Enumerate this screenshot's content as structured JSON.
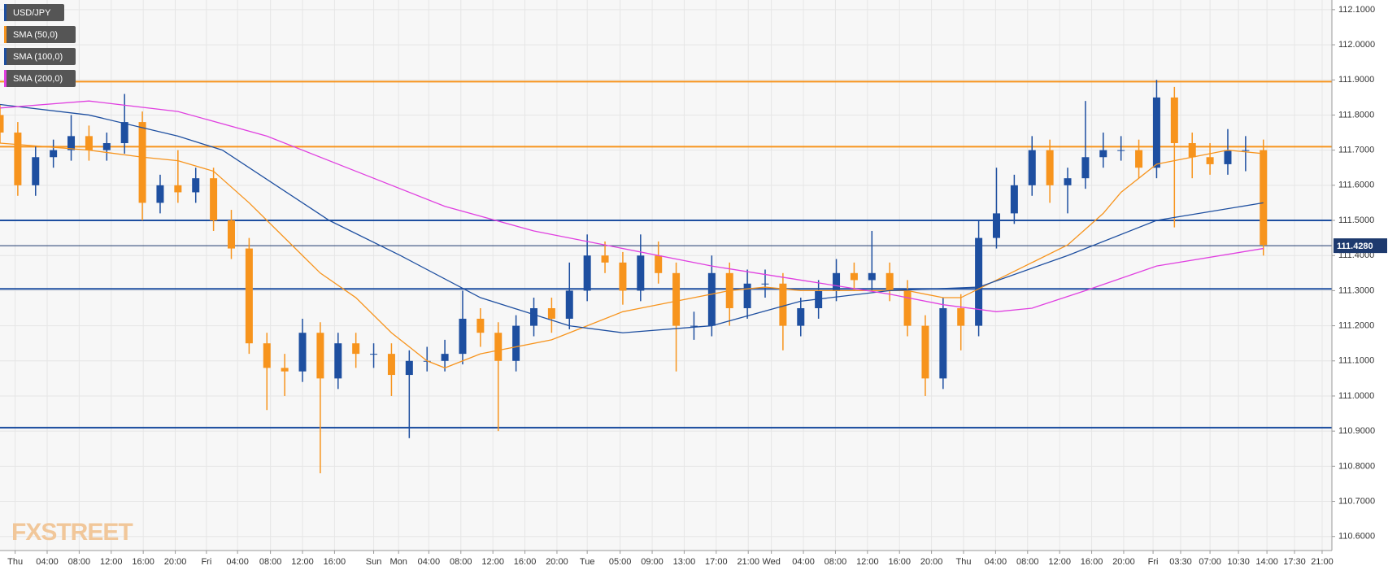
{
  "chart_data": {
    "type": "candlestick",
    "title": "USD/JPY",
    "watermark": "FXSTREET",
    "up_color": "#1e4fa0",
    "down_color": "#f7941d",
    "grid": true,
    "xlim": [
      0,
      74.85
    ],
    "ylim": [
      110.56,
      112.1275
    ],
    "yticks": [
      {
        "value": 110.6,
        "label": "110.6000"
      },
      {
        "value": 110.7,
        "label": "110.7000"
      },
      {
        "value": 110.8,
        "label": "110.8000"
      },
      {
        "value": 110.9,
        "label": "110.9000"
      },
      {
        "value": 111.0,
        "label": "111.0000"
      },
      {
        "value": 111.1,
        "label": "111.1000"
      },
      {
        "value": 111.2,
        "label": "111.2000"
      },
      {
        "value": 111.3,
        "label": "111.3000"
      },
      {
        "value": 111.4,
        "label": "111.4000"
      },
      {
        "value": 111.5,
        "label": "111.5000"
      },
      {
        "value": 111.6,
        "label": "111.6000"
      },
      {
        "value": 111.7,
        "label": "111.7000"
      },
      {
        "value": 111.8,
        "label": "111.8000"
      },
      {
        "value": 111.9,
        "label": "111.9000"
      },
      {
        "value": 112.0,
        "label": "112.0000"
      },
      {
        "value": 112.1,
        "label": "112.1000"
      }
    ],
    "xticks": [
      {
        "value": 0.85,
        "label": "Thu"
      },
      {
        "value": 2.65,
        "label": "04:00"
      },
      {
        "value": 4.45,
        "label": "08:00"
      },
      {
        "value": 6.25,
        "label": "12:00"
      },
      {
        "value": 8.05,
        "label": "16:00"
      },
      {
        "value": 9.85,
        "label": "20:00"
      },
      {
        "value": 11.6,
        "label": "Fri"
      },
      {
        "value": 13.35,
        "label": "04:00"
      },
      {
        "value": 15.2,
        "label": "08:00"
      },
      {
        "value": 17,
        "label": "12:00"
      },
      {
        "value": 18.8,
        "label": "16:00"
      },
      {
        "value": 21,
        "label": "Sun"
      },
      {
        "value": 22.4,
        "label": "Mon"
      },
      {
        "value": 24.1,
        "label": "04:00"
      },
      {
        "value": 25.9,
        "label": "08:00"
      },
      {
        "value": 27.7,
        "label": "12:00"
      },
      {
        "value": 29.5,
        "label": "16:00"
      },
      {
        "value": 31.3,
        "label": "20:00"
      },
      {
        "value": 33,
        "label": "Tue"
      },
      {
        "value": 34.85,
        "label": "05:00"
      },
      {
        "value": 36.65,
        "label": "09:00"
      },
      {
        "value": 38.45,
        "label": "13:00"
      },
      {
        "value": 40.25,
        "label": "17:00"
      },
      {
        "value": 42.05,
        "label": "21:00"
      },
      {
        "value": 43.35,
        "label": "Wed"
      },
      {
        "value": 45.15,
        "label": "04:00"
      },
      {
        "value": 46.95,
        "label": "08:00"
      },
      {
        "value": 48.75,
        "label": "12:00"
      },
      {
        "value": 50.55,
        "label": "16:00"
      },
      {
        "value": 52.35,
        "label": "20:00"
      },
      {
        "value": 54.15,
        "label": "Thu"
      },
      {
        "value": 55.95,
        "label": "04:00"
      },
      {
        "value": 57.75,
        "label": "08:00"
      },
      {
        "value": 59.55,
        "label": "12:00"
      },
      {
        "value": 61.35,
        "label": "16:00"
      },
      {
        "value": 63.15,
        "label": "20:00"
      },
      {
        "value": 64.8,
        "label": "Fri"
      },
      {
        "value": 66.35,
        "label": "03:30"
      },
      {
        "value": 68,
        "label": "07:00"
      },
      {
        "value": 69.6,
        "label": "10:30"
      },
      {
        "value": 71.2,
        "label": "14:00"
      },
      {
        "value": 72.75,
        "label": "17:30"
      },
      {
        "value": 74.3,
        "label": "21:00"
      }
    ],
    "x": [
      0,
      1,
      2,
      3,
      4,
      5,
      6,
      7,
      8,
      9,
      10,
      11,
      12,
      13,
      14,
      15,
      16,
      17,
      18,
      19,
      20,
      21,
      22,
      23,
      24,
      25,
      26,
      27,
      28,
      29,
      30,
      31,
      32,
      33,
      34,
      35,
      36,
      37,
      38,
      39,
      40,
      41,
      42,
      43,
      44,
      45,
      46,
      47,
      48,
      49,
      50,
      51,
      52,
      53,
      54,
      55,
      56,
      57,
      58,
      59,
      60,
      61,
      62,
      63,
      64,
      65,
      66,
      67,
      68,
      69,
      70,
      71
    ],
    "open": [
      111.8,
      111.75,
      111.6,
      111.68,
      111.7,
      111.74,
      111.7,
      111.72,
      111.78,
      111.55,
      111.6,
      111.58,
      111.62,
      111.5,
      111.42,
      111.15,
      111.08,
      111.07,
      111.18,
      111.05,
      111.15,
      111.12,
      111.12,
      111.06,
      111.1,
      111.1,
      111.12,
      111.22,
      111.18,
      111.1,
      111.2,
      111.25,
      111.22,
      111.3,
      111.4,
      111.38,
      111.3,
      111.4,
      111.35,
      111.2,
      111.2,
      111.35,
      111.25,
      111.32,
      111.32,
      111.2,
      111.25,
      111.3,
      111.35,
      111.33,
      111.35,
      111.3,
      111.2,
      111.05,
      111.25,
      111.2,
      111.45,
      111.52,
      111.6,
      111.7,
      111.6,
      111.62,
      111.68,
      111.7,
      111.7,
      111.65,
      111.85,
      111.72,
      111.68,
      111.66,
      111.7,
      111.7
    ],
    "high": [
      111.83,
      111.78,
      111.71,
      111.73,
      111.8,
      111.77,
      111.75,
      111.86,
      111.81,
      111.63,
      111.7,
      111.65,
      111.65,
      111.53,
      111.45,
      111.18,
      111.12,
      111.22,
      111.21,
      111.18,
      111.18,
      111.15,
      111.15,
      111.13,
      111.14,
      111.16,
      111.3,
      111.25,
      111.21,
      111.23,
      111.28,
      111.28,
      111.38,
      111.46,
      111.44,
      111.41,
      111.46,
      111.44,
      111.38,
      111.24,
      111.4,
      111.38,
      111.36,
      111.36,
      111.35,
      111.28,
      111.33,
      111.39,
      111.38,
      111.47,
      111.38,
      111.33,
      111.23,
      111.28,
      111.29,
      111.5,
      111.65,
      111.63,
      111.74,
      111.73,
      111.65,
      111.84,
      111.75,
      111.74,
      111.73,
      111.9,
      111.88,
      111.75,
      111.72,
      111.76,
      111.74,
      111.73
    ],
    "low": [
      111.72,
      111.57,
      111.57,
      111.65,
      111.67,
      111.67,
      111.67,
      111.69,
      111.5,
      111.52,
      111.55,
      111.55,
      111.47,
      111.39,
      111.12,
      110.96,
      111.0,
      111.04,
      110.78,
      111.02,
      111.08,
      111.08,
      111.0,
      110.88,
      111.07,
      111.07,
      111.09,
      111.14,
      110.9,
      111.07,
      111.17,
      111.18,
      111.19,
      111.27,
      111.35,
      111.26,
      111.27,
      111.32,
      111.07,
      111.16,
      111.17,
      111.2,
      111.22,
      111.28,
      111.13,
      111.17,
      111.22,
      111.27,
      111.3,
      111.3,
      111.27,
      111.17,
      111.0,
      111.02,
      111.13,
      111.17,
      111.42,
      111.49,
      111.57,
      111.55,
      111.52,
      111.59,
      111.65,
      111.67,
      111.62,
      111.62,
      111.48,
      111.62,
      111.63,
      111.63,
      111.64,
      111.4
    ],
    "close": [
      111.75,
      111.6,
      111.68,
      111.7,
      111.74,
      111.7,
      111.72,
      111.78,
      111.55,
      111.6,
      111.58,
      111.62,
      111.5,
      111.42,
      111.15,
      111.08,
      111.07,
      111.18,
      111.05,
      111.15,
      111.12,
      111.12,
      111.06,
      111.1,
      111.1,
      111.12,
      111.22,
      111.18,
      111.1,
      111.2,
      111.25,
      111.22,
      111.3,
      111.4,
      111.38,
      111.3,
      111.4,
      111.35,
      111.2,
      111.2,
      111.35,
      111.25,
      111.32,
      111.32,
      111.2,
      111.25,
      111.3,
      111.35,
      111.33,
      111.35,
      111.3,
      111.2,
      111.05,
      111.25,
      111.2,
      111.45,
      111.52,
      111.6,
      111.7,
      111.6,
      111.62,
      111.68,
      111.7,
      111.7,
      111.65,
      111.85,
      111.72,
      111.68,
      111.66,
      111.7,
      111.7,
      111.43
    ],
    "series": [
      {
        "name": "SMA (50,0)",
        "color": "#f7941d",
        "x": [
          0,
          5,
          8,
          10,
          12,
          14,
          16,
          18,
          20,
          22,
          24,
          25,
          27,
          29,
          31,
          33,
          35,
          37,
          39,
          41,
          43,
          45,
          47,
          49,
          51,
          53,
          54,
          56,
          58,
          60,
          62,
          63,
          65,
          67,
          69,
          71
        ],
        "values": [
          111.72,
          111.7,
          111.68,
          111.67,
          111.64,
          111.55,
          111.45,
          111.35,
          111.28,
          111.18,
          111.1,
          111.08,
          111.12,
          111.14,
          111.16,
          111.2,
          111.24,
          111.26,
          111.28,
          111.3,
          111.31,
          111.3,
          111.3,
          111.3,
          111.3,
          111.28,
          111.28,
          111.33,
          111.38,
          111.43,
          111.52,
          111.58,
          111.66,
          111.68,
          111.7,
          111.69
        ]
      },
      {
        "name": "SMA (100,0)",
        "color": "#1e4fa0",
        "x": [
          0,
          5,
          10,
          12.5,
          18.5,
          22.5,
          27,
          32,
          35,
          40,
          45,
          50,
          55,
          60,
          65,
          71
        ],
        "values": [
          111.83,
          111.8,
          111.74,
          111.7,
          111.5,
          111.4,
          111.28,
          111.2,
          111.18,
          111.2,
          111.27,
          111.3,
          111.31,
          111.4,
          111.5,
          111.55
        ]
      },
      {
        "name": "SMA (200,0)",
        "color": "#e040e0",
        "x": [
          0,
          5,
          10,
          15,
          20,
          25,
          30,
          34,
          40,
          45,
          50,
          53,
          56,
          58,
          61,
          65,
          71
        ],
        "values": [
          111.82,
          111.84,
          111.81,
          111.74,
          111.64,
          111.54,
          111.47,
          111.43,
          111.37,
          111.33,
          111.29,
          111.26,
          111.24,
          111.25,
          111.3,
          111.37,
          111.42
        ]
      }
    ],
    "levels": [
      {
        "value": 111.895,
        "color": "#f7941d"
      },
      {
        "value": 111.71,
        "color": "#f7941d"
      },
      {
        "value": 111.5,
        "color": "#1e4fa0"
      },
      {
        "value": 111.305,
        "color": "#1e4fa0"
      },
      {
        "value": 110.91,
        "color": "#1e4fa0"
      }
    ],
    "price_line": {
      "value": 111.428,
      "label": "111.4280"
    }
  }
}
